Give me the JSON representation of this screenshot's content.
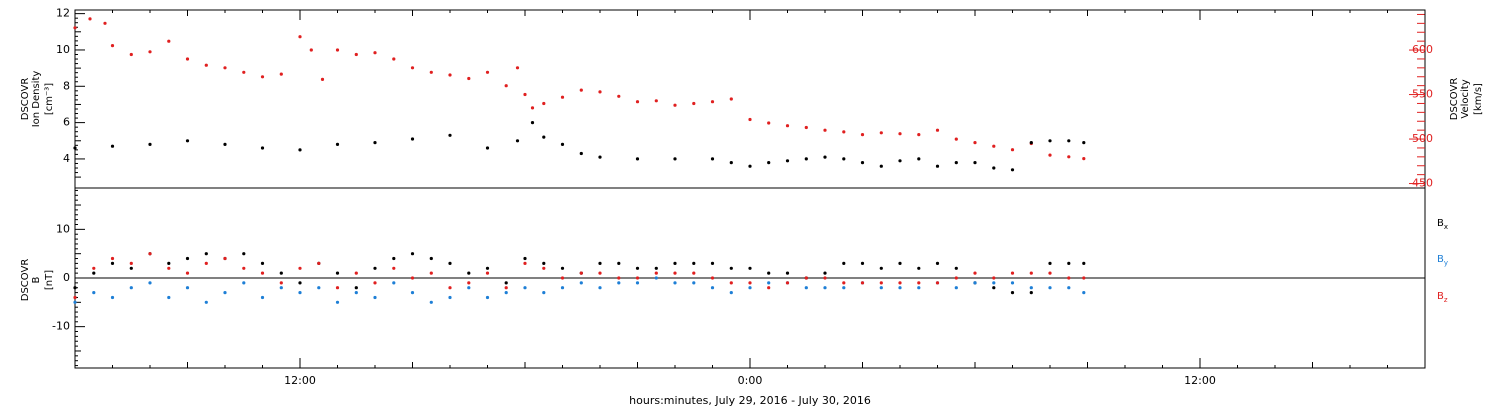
{
  "chart_data": [
    {
      "type": "scatter",
      "panel": "top",
      "y_left_label": [
        "DSCOVR",
        "Ion Density",
        "[cm⁻³]"
      ],
      "y_right_label": [
        "DSCOVR",
        "Velocity",
        "[km/s]"
      ],
      "y_left_ticks": [
        "4",
        "6",
        "8",
        "10",
        "12"
      ],
      "y_left_range": [
        2.4,
        12.2
      ],
      "y_right_ticks": [
        "450",
        "500",
        "550",
        "600"
      ],
      "y_right_range": [
        445,
        645
      ],
      "x_hours_range": [
        6,
        42
      ],
      "colors": {
        "density": "#000000",
        "velocity": "#e02020"
      },
      "series": [
        {
          "name": "Ion Density",
          "axis": "left",
          "points": [
            [
              6.0,
              4.6
            ],
            [
              7.0,
              4.7
            ],
            [
              8.0,
              4.8
            ],
            [
              9.0,
              5.0
            ],
            [
              10.0,
              4.8
            ],
            [
              11.0,
              4.6
            ],
            [
              12.0,
              4.5
            ],
            [
              13.0,
              4.8
            ],
            [
              14.0,
              4.9
            ],
            [
              15.0,
              5.1
            ],
            [
              16.0,
              5.3
            ],
            [
              17.0,
              4.6
            ],
            [
              17.8,
              5.0
            ],
            [
              18.2,
              6.0
            ],
            [
              18.5,
              5.2
            ],
            [
              19.0,
              4.8
            ],
            [
              19.5,
              4.3
            ],
            [
              20.0,
              4.1
            ],
            [
              21.0,
              4.0
            ],
            [
              22.0,
              4.0
            ],
            [
              23.0,
              4.0
            ],
            [
              23.5,
              3.8
            ],
            [
              24.0,
              3.6
            ],
            [
              24.5,
              3.8
            ],
            [
              25.0,
              3.9
            ],
            [
              25.5,
              4.0
            ],
            [
              26.0,
              4.1
            ],
            [
              26.5,
              4.0
            ],
            [
              27.0,
              3.8
            ],
            [
              27.5,
              3.6
            ],
            [
              28.0,
              3.9
            ],
            [
              28.5,
              4.0
            ],
            [
              29.0,
              3.6
            ],
            [
              29.5,
              3.8
            ],
            [
              30.0,
              3.8
            ],
            [
              30.5,
              3.5
            ],
            [
              31.0,
              3.4
            ],
            [
              31.5,
              4.9
            ],
            [
              32.0,
              5.0
            ],
            [
              32.5,
              5.0
            ],
            [
              32.9,
              4.9
            ]
          ]
        },
        {
          "name": "Velocity",
          "axis": "right",
          "points": [
            [
              6.0,
              625
            ],
            [
              6.4,
              635
            ],
            [
              6.8,
              630
            ],
            [
              7.0,
              605
            ],
            [
              7.5,
              595
            ],
            [
              8.0,
              598
            ],
            [
              8.5,
              610
            ],
            [
              9.0,
              590
            ],
            [
              9.5,
              583
            ],
            [
              10.0,
              580
            ],
            [
              10.5,
              575
            ],
            [
              11.0,
              570
            ],
            [
              11.5,
              573
            ],
            [
              12.0,
              615
            ],
            [
              12.3,
              600
            ],
            [
              12.6,
              567
            ],
            [
              13.0,
              600
            ],
            [
              13.5,
              595
            ],
            [
              14.0,
              597
            ],
            [
              14.5,
              590
            ],
            [
              15.0,
              580
            ],
            [
              15.5,
              575
            ],
            [
              16.0,
              572
            ],
            [
              16.5,
              568
            ],
            [
              17.0,
              575
            ],
            [
              17.5,
              560
            ],
            [
              17.8,
              580
            ],
            [
              18.0,
              550
            ],
            [
              18.2,
              535
            ],
            [
              18.5,
              540
            ],
            [
              19.0,
              547
            ],
            [
              19.5,
              555
            ],
            [
              20.0,
              553
            ],
            [
              20.5,
              548
            ],
            [
              21.0,
              542
            ],
            [
              21.5,
              543
            ],
            [
              22.0,
              538
            ],
            [
              22.5,
              540
            ],
            [
              23.0,
              542
            ],
            [
              23.5,
              545
            ],
            [
              24.0,
              522
            ],
            [
              24.5,
              518
            ],
            [
              25.0,
              515
            ],
            [
              25.5,
              513
            ],
            [
              26.0,
              510
            ],
            [
              26.5,
              508
            ],
            [
              27.0,
              505
            ],
            [
              27.5,
              507
            ],
            [
              28.0,
              506
            ],
            [
              28.5,
              505
            ],
            [
              29.0,
              510
            ],
            [
              29.5,
              500
            ],
            [
              30.0,
              496
            ],
            [
              30.5,
              492
            ],
            [
              31.0,
              488
            ],
            [
              31.5,
              495
            ],
            [
              32.0,
              482
            ],
            [
              32.5,
              480
            ],
            [
              32.9,
              478
            ]
          ]
        }
      ]
    },
    {
      "type": "scatter",
      "panel": "bottom",
      "y_left_label": [
        "DSCOVR",
        "B",
        "[nT]"
      ],
      "y_left_ticks": [
        "-10",
        "0",
        "10"
      ],
      "y_range": [
        -18.5,
        18.5
      ],
      "x_ticks": [
        "12:00",
        "0:00",
        "12:00"
      ],
      "x_tick_hours": [
        12,
        24,
        36
      ],
      "x_hours_range": [
        6,
        42
      ],
      "xlabel": "hours:minutes, July 29, 2016 - July 30, 2016",
      "legend": [
        {
          "label": "B",
          "sub": "x",
          "color": "#000000"
        },
        {
          "label": "B",
          "sub": "y",
          "color": "#1e7fd6"
        },
        {
          "label": "B",
          "sub": "z",
          "color": "#e02020"
        }
      ],
      "series": [
        {
          "name": "Bx",
          "color": "#000000",
          "points": [
            [
              6.0,
              -2
            ],
            [
              6.5,
              1
            ],
            [
              7.0,
              3
            ],
            [
              7.5,
              2
            ],
            [
              8.0,
              5
            ],
            [
              8.5,
              3
            ],
            [
              9.0,
              4
            ],
            [
              9.5,
              5
            ],
            [
              10.0,
              4
            ],
            [
              10.5,
              5
            ],
            [
              11.0,
              3
            ],
            [
              11.5,
              1
            ],
            [
              12.0,
              -1
            ],
            [
              12.5,
              3
            ],
            [
              13.0,
              1
            ],
            [
              13.5,
              -2
            ],
            [
              14.0,
              2
            ],
            [
              14.5,
              4
            ],
            [
              15.0,
              5
            ],
            [
              15.5,
              4
            ],
            [
              16.0,
              3
            ],
            [
              16.5,
              1
            ],
            [
              17.0,
              2
            ],
            [
              17.5,
              -1
            ],
            [
              18.0,
              4
            ],
            [
              18.5,
              3
            ],
            [
              19.0,
              2
            ],
            [
              19.5,
              1
            ],
            [
              20.0,
              3
            ],
            [
              20.5,
              3
            ],
            [
              21.0,
              2
            ],
            [
              21.5,
              2
            ],
            [
              22.0,
              3
            ],
            [
              22.5,
              3
            ],
            [
              23.0,
              3
            ],
            [
              23.5,
              2
            ],
            [
              24.0,
              2
            ],
            [
              24.5,
              1
            ],
            [
              25.0,
              1
            ],
            [
              25.5,
              0
            ],
            [
              26.0,
              1
            ],
            [
              26.5,
              3
            ],
            [
              27.0,
              3
            ],
            [
              27.5,
              2
            ],
            [
              28.0,
              3
            ],
            [
              28.5,
              2
            ],
            [
              29.0,
              3
            ],
            [
              29.5,
              2
            ],
            [
              30.0,
              -1
            ],
            [
              30.5,
              -2
            ],
            [
              31.0,
              -3
            ],
            [
              31.5,
              -3
            ],
            [
              32.0,
              3
            ],
            [
              32.5,
              3
            ],
            [
              32.9,
              3
            ]
          ]
        },
        {
          "name": "By",
          "color": "#1e7fd6",
          "points": [
            [
              6.0,
              -5
            ],
            [
              6.5,
              -3
            ],
            [
              7.0,
              -4
            ],
            [
              7.5,
              -2
            ],
            [
              8.0,
              -1
            ],
            [
              8.5,
              -4
            ],
            [
              9.0,
              -2
            ],
            [
              9.5,
              -5
            ],
            [
              10.0,
              -3
            ],
            [
              10.5,
              -1
            ],
            [
              11.0,
              -4
            ],
            [
              11.5,
              -2
            ],
            [
              12.0,
              -3
            ],
            [
              12.5,
              -2
            ],
            [
              13.0,
              -5
            ],
            [
              13.5,
              -3
            ],
            [
              14.0,
              -4
            ],
            [
              14.5,
              -1
            ],
            [
              15.0,
              -3
            ],
            [
              15.5,
              -5
            ],
            [
              16.0,
              -4
            ],
            [
              16.5,
              -2
            ],
            [
              17.0,
              -4
            ],
            [
              17.5,
              -3
            ],
            [
              18.0,
              -2
            ],
            [
              18.5,
              -3
            ],
            [
              19.0,
              -2
            ],
            [
              19.5,
              -1
            ],
            [
              20.0,
              -2
            ],
            [
              20.5,
              -1
            ],
            [
              21.0,
              -1
            ],
            [
              21.5,
              0
            ],
            [
              22.0,
              -1
            ],
            [
              22.5,
              -1
            ],
            [
              23.0,
              -2
            ],
            [
              23.5,
              -3
            ],
            [
              24.0,
              -2
            ],
            [
              24.5,
              -1
            ],
            [
              25.0,
              -1
            ],
            [
              25.5,
              -2
            ],
            [
              26.0,
              -2
            ],
            [
              26.5,
              -2
            ],
            [
              27.0,
              -1
            ],
            [
              27.5,
              -2
            ],
            [
              28.0,
              -2
            ],
            [
              28.5,
              -2
            ],
            [
              29.0,
              -1
            ],
            [
              29.5,
              -2
            ],
            [
              30.0,
              -1
            ],
            [
              30.5,
              -1
            ],
            [
              31.0,
              -1
            ],
            [
              31.5,
              -2
            ],
            [
              32.0,
              -2
            ],
            [
              32.5,
              -2
            ],
            [
              32.9,
              -3
            ]
          ]
        },
        {
          "name": "Bz",
          "color": "#e02020",
          "points": [
            [
              6.0,
              -4
            ],
            [
              6.5,
              2
            ],
            [
              7.0,
              4
            ],
            [
              7.5,
              3
            ],
            [
              8.0,
              5
            ],
            [
              8.5,
              2
            ],
            [
              9.0,
              1
            ],
            [
              9.5,
              3
            ],
            [
              10.0,
              4
            ],
            [
              10.5,
              2
            ],
            [
              11.0,
              1
            ],
            [
              11.5,
              -1
            ],
            [
              12.0,
              2
            ],
            [
              12.5,
              3
            ],
            [
              13.0,
              -2
            ],
            [
              13.5,
              1
            ],
            [
              14.0,
              -1
            ],
            [
              14.5,
              2
            ],
            [
              15.0,
              0
            ],
            [
              15.5,
              1
            ],
            [
              16.0,
              -2
            ],
            [
              16.5,
              -1
            ],
            [
              17.0,
              1
            ],
            [
              17.5,
              -2
            ],
            [
              18.0,
              3
            ],
            [
              18.5,
              2
            ],
            [
              19.0,
              0
            ],
            [
              19.5,
              1
            ],
            [
              20.0,
              1
            ],
            [
              20.5,
              0
            ],
            [
              21.0,
              0
            ],
            [
              21.5,
              1
            ],
            [
              22.0,
              1
            ],
            [
              22.5,
              1
            ],
            [
              23.0,
              0
            ],
            [
              23.5,
              -1
            ],
            [
              24.0,
              -1
            ],
            [
              24.5,
              -2
            ],
            [
              25.0,
              -1
            ],
            [
              25.5,
              0
            ],
            [
              26.0,
              0
            ],
            [
              26.5,
              -1
            ],
            [
              27.0,
              -1
            ],
            [
              27.5,
              -1
            ],
            [
              28.0,
              -1
            ],
            [
              28.5,
              -1
            ],
            [
              29.0,
              -1
            ],
            [
              29.5,
              0
            ],
            [
              30.0,
              1
            ],
            [
              30.5,
              0
            ],
            [
              31.0,
              1
            ],
            [
              31.5,
              1
            ],
            [
              32.0,
              1
            ],
            [
              32.5,
              0
            ],
            [
              32.9,
              0
            ]
          ]
        }
      ]
    }
  ]
}
